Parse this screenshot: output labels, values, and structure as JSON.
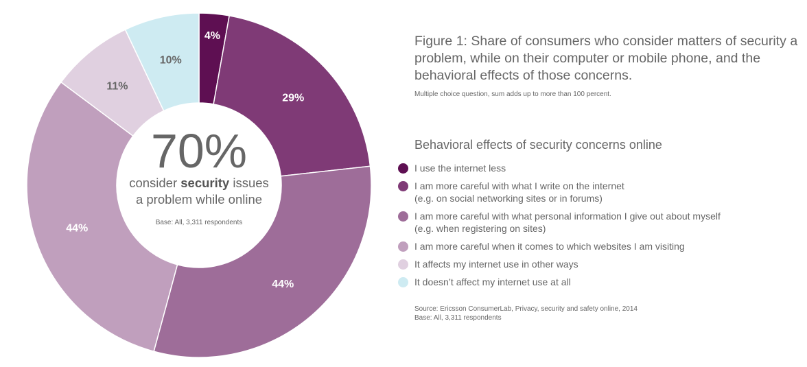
{
  "chart_data": {
    "type": "pie",
    "title": "Figure 1: Share of consumers who consider matters of security a problem, while on their computer or mobile phone, and the behavioral effects of those concerns.",
    "subtitle": "Multiple choice question, sum adds up to more than 100 percent.",
    "legend_title": "Behavioral effects of security concerns online",
    "legend_placement": "right",
    "slices": [
      {
        "label": "I use the internet less",
        "sub": "",
        "value": 4,
        "display": "4%",
        "color": "#5e0f52"
      },
      {
        "label": "I am more careful with what I write on the internet",
        "sub": "(e.g. on social networking sites or in forums)",
        "value": 29,
        "display": "29%",
        "color": "#7f3a76"
      },
      {
        "label": "I am more careful with what personal information I give out about myself",
        "sub": "(e.g. when registering on sites)",
        "value": 44,
        "display": "44%",
        "color": "#9e6d99"
      },
      {
        "label": "I am more careful when it comes to which websites I am visiting",
        "sub": "",
        "value": 44,
        "display": "44%",
        "color": "#c09fbd"
      },
      {
        "label": "It affects my internet use in other ways",
        "sub": "",
        "value": 11,
        "display": "11%",
        "color": "#e0d0e0"
      },
      {
        "label": "It doesn’t affect my internet use at all",
        "sub": "",
        "value": 10,
        "display": "10%",
        "color": "#ceebf2"
      }
    ],
    "center": {
      "big": "70%",
      "line1_pre": "consider ",
      "line1_bold": "security",
      "line1_post": " issues",
      "line2": "a problem while online",
      "base": "Base: All, 3,311 respondents"
    },
    "source": "Source: Ericsson ConsumerLab, Privacy, security and safety online, 2014",
    "base": "Base: All, 3,311 respondents"
  }
}
